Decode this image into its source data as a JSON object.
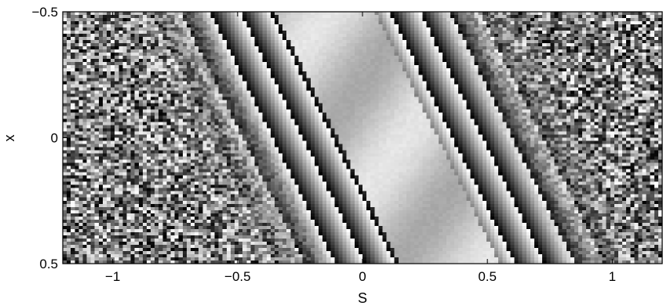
{
  "chart_data": {
    "type": "heatmap",
    "colormap": "grayscale",
    "xlabel": "S",
    "ylabel": "x",
    "xlim": [
      -1.2,
      1.2
    ],
    "ylim": [
      -0.5,
      0.5
    ],
    "y_reversed": true,
    "x_ticks": [
      {
        "value": -1,
        "label": "−1"
      },
      {
        "value": -0.5,
        "label": "−0.5"
      },
      {
        "value": 0,
        "label": "0"
      },
      {
        "value": 0.5,
        "label": "0.5"
      },
      {
        "value": 1,
        "label": "1"
      }
    ],
    "y_ticks": [
      {
        "value": -0.5,
        "label": "−0.5"
      },
      {
        "value": 0,
        "label": "0"
      },
      {
        "value": 0.5,
        "label": "0.5"
      }
    ],
    "grid": false,
    "features": {
      "smooth_band": {
        "description_value": "bright smooth region (values near 0.85) running diagonally",
        "center_at_top_S": -0.15,
        "center_at_bottom_S": 0.35,
        "half_width_S": 0.2
      },
      "stripes": {
        "slope_S_per_x": 0.5,
        "spacing_S": 0.12
      },
      "noise_regions": "speckled random gray values in far left and far right"
    }
  }
}
